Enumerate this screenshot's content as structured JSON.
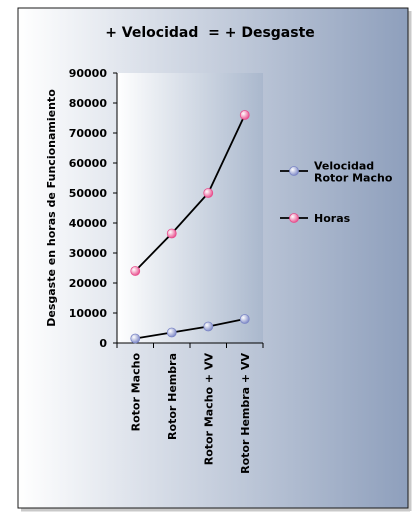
{
  "chart_data": {
    "type": "line",
    "title": "+ Velocidad  = + Desgaste",
    "ylabel": "Desgaste en horas de Funcionamiento",
    "xlabel": "",
    "categories": [
      "Rotor Macho",
      "Rotor Hembra",
      "Rotor Macho + VV",
      "Rotor Hembra + VV"
    ],
    "ylim": [
      0,
      90000
    ],
    "yticks": [
      "0",
      "10000",
      "20000",
      "30000",
      "40000",
      "50000",
      "60000",
      "70000",
      "80000",
      "90000"
    ],
    "grid": false,
    "legend_position": "right",
    "series": [
      {
        "name": "Velocidad Rotor Macho",
        "values": [
          1500,
          3500,
          5500,
          8000
        ],
        "color": "#7b86c6"
      },
      {
        "name": "Horas",
        "values": [
          24000,
          36500,
          50000,
          76000
        ],
        "color": "#e84c8c"
      }
    ],
    "colors": {
      "plot_bg_left": "#ffffff",
      "plot_bg_right": "#aab8cd",
      "page_bg_left": "#ffffff",
      "page_bg_right": "#8e9fbc",
      "line": "#000000"
    }
  }
}
